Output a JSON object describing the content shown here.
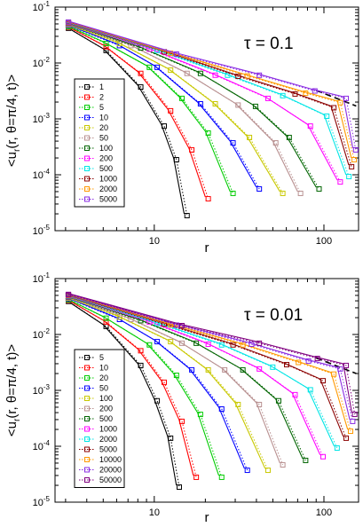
{
  "chart_data": [
    {
      "type": "line",
      "annotation": "τ = 0.1",
      "xlabel": "r",
      "ylabel": "<u_r(r, θ=π/4, t)>",
      "xscale": "log",
      "yscale": "log",
      "xlim": [
        2.6,
        160
      ],
      "ylim": [
        1e-05,
        0.1
      ],
      "x_ticks": [
        "10",
        "100"
      ],
      "y_ticks": [
        "10-5",
        "10-4",
        "10-3",
        "10-2",
        "10-1"
      ],
      "legend_position": "left",
      "series": [
        {
          "name": "1",
          "color": "#000000",
          "values": [
            [
              3,
              0.045
            ],
            [
              5,
              0.018
            ],
            [
              8,
              0.004
            ],
            [
              11,
              0.0008
            ],
            [
              13,
              0.0002
            ],
            [
              15,
              2e-05
            ]
          ]
        },
        {
          "name": "2",
          "color": "#ff0000",
          "values": [
            [
              3,
              0.047
            ],
            [
              5,
              0.021
            ],
            [
              8,
              0.007
            ],
            [
              12,
              0.0015
            ],
            [
              16,
              0.0003
            ],
            [
              20,
              4e-05
            ]
          ]
        },
        {
          "name": "5",
          "color": "#00cc00",
          "values": [
            [
              3,
              0.048
            ],
            [
              5,
              0.024
            ],
            [
              9,
              0.009
            ],
            [
              14,
              0.0025
            ],
            [
              20,
              0.0006
            ],
            [
              28,
              5e-05
            ]
          ]
        },
        {
          "name": "10",
          "color": "#0000ff",
          "values": [
            [
              3,
              0.05
            ],
            [
              6,
              0.022
            ],
            [
              10,
              0.009
            ],
            [
              18,
              0.002
            ],
            [
              28,
              0.0004
            ],
            [
              40,
              6e-05
            ]
          ]
        },
        {
          "name": "20",
          "color": "#c8c800",
          "values": [
            [
              3,
              0.051
            ],
            [
              6,
              0.024
            ],
            [
              12,
              0.008
            ],
            [
              22,
              0.002
            ],
            [
              35,
              0.0005
            ],
            [
              55,
              5e-05
            ]
          ]
        },
        {
          "name": "50",
          "color": "#b89090",
          "values": [
            [
              3,
              0.052
            ],
            [
              7,
              0.022
            ],
            [
              15,
              0.007
            ],
            [
              30,
              0.0019
            ],
            [
              50,
              0.0004
            ],
            [
              70,
              5e-05
            ]
          ]
        },
        {
          "name": "100",
          "color": "#006400",
          "values": [
            [
              3,
              0.053
            ],
            [
              8,
              0.02
            ],
            [
              18,
              0.007
            ],
            [
              38,
              0.0018
            ],
            [
              60,
              0.0005
            ],
            [
              90,
              6e-05
            ]
          ]
        },
        {
          "name": "200",
          "color": "#ff00ff",
          "values": [
            [
              3,
              0.054
            ],
            [
              9,
              0.019
            ],
            [
              22,
              0.0065
            ],
            [
              45,
              0.0025
            ],
            [
              80,
              0.0008
            ],
            [
              120,
              8e-05
            ]
          ]
        },
        {
          "name": "500",
          "color": "#00e5e5",
          "values": [
            [
              3,
              0.055
            ],
            [
              10,
              0.018
            ],
            [
              26,
              0.0065
            ],
            [
              55,
              0.0028
            ],
            [
              100,
              0.0012
            ],
            [
              135,
              0.0001
            ]
          ]
        },
        {
          "name": "1000",
          "color": "#8b0000",
          "values": [
            [
              3,
              0.056
            ],
            [
              11,
              0.017
            ],
            [
              30,
              0.0062
            ],
            [
              65,
              0.003
            ],
            [
              110,
              0.0017
            ],
            [
              140,
              0.00015
            ]
          ]
        },
        {
          "name": "2000",
          "color": "#ff9900",
          "values": [
            [
              3,
              0.057
            ],
            [
              12,
              0.016
            ],
            [
              34,
              0.0063
            ],
            [
              75,
              0.0031
            ],
            [
              120,
              0.0021
            ],
            [
              145,
              0.0002
            ]
          ]
        },
        {
          "name": "5000",
          "color": "#8a2be2",
          "values": [
            [
              3,
              0.058
            ],
            [
              13,
              0.0155
            ],
            [
              40,
              0.0065
            ],
            [
              85,
              0.0034
            ],
            [
              130,
              0.0025
            ],
            [
              148,
              0.0003
            ]
          ]
        }
      ]
    },
    {
      "type": "line",
      "annotation": "τ = 0.01",
      "xlabel": "r",
      "ylabel": "<u_r(r, θ=π/4, t)>",
      "xscale": "log",
      "yscale": "log",
      "xlim": [
        2.6,
        160
      ],
      "ylim": [
        1e-05,
        0.1
      ],
      "x_ticks": [
        "10",
        "100"
      ],
      "y_ticks": [
        "10-5",
        "10-4",
        "10-3",
        "10-2",
        "10-1"
      ],
      "legend_position": "left",
      "series": [
        {
          "name": "5",
          "color": "#000000",
          "values": [
            [
              3,
              0.042
            ],
            [
              5,
              0.015
            ],
            [
              8,
              0.003
            ],
            [
              10,
              0.0007
            ],
            [
              12,
              0.00015
            ],
            [
              13.5,
              2e-05
            ]
          ]
        },
        {
          "name": "10",
          "color": "#ff0000",
          "values": [
            [
              3,
              0.044
            ],
            [
              5,
              0.018
            ],
            [
              8,
              0.0055
            ],
            [
              11,
              0.0015
            ],
            [
              14,
              0.0003
            ],
            [
              17,
              3e-05
            ]
          ]
        },
        {
          "name": "20",
          "color": "#00cc00",
          "values": [
            [
              3,
              0.045
            ],
            [
              5,
              0.021
            ],
            [
              9,
              0.007
            ],
            [
              13,
              0.002
            ],
            [
              18,
              0.0004
            ],
            [
              24,
              3e-05
            ]
          ]
        },
        {
          "name": "50",
          "color": "#0000ff",
          "values": [
            [
              3,
              0.047
            ],
            [
              6,
              0.02
            ],
            [
              10,
              0.008
            ],
            [
              16,
              0.0025
            ],
            [
              24,
              0.0005
            ],
            [
              34,
              4e-05
            ]
          ]
        },
        {
          "name": "100",
          "color": "#c8c800",
          "values": [
            [
              3,
              0.048
            ],
            [
              6,
              0.022
            ],
            [
              12,
              0.008
            ],
            [
              20,
              0.0025
            ],
            [
              30,
              0.0006
            ],
            [
              45,
              4e-05
            ]
          ]
        },
        {
          "name": "200",
          "color": "#b89090",
          "values": [
            [
              3,
              0.049
            ],
            [
              7,
              0.02
            ],
            [
              14,
              0.0075
            ],
            [
              25,
              0.0025
            ],
            [
              40,
              0.0006
            ],
            [
              55,
              5e-05
            ]
          ]
        },
        {
          "name": "500",
          "color": "#006400",
          "values": [
            [
              3,
              0.05
            ],
            [
              8,
              0.019
            ],
            [
              17,
              0.0075
            ],
            [
              32,
              0.0025
            ],
            [
              52,
              0.0007
            ],
            [
              75,
              6e-05
            ]
          ]
        },
        {
          "name": "1000",
          "color": "#ff00ff",
          "values": [
            [
              3,
              0.051
            ],
            [
              9,
              0.018
            ],
            [
              20,
              0.0072
            ],
            [
              40,
              0.0026
            ],
            [
              65,
              0.0009
            ],
            [
              95,
              7e-05
            ]
          ]
        },
        {
          "name": "2000",
          "color": "#00e5e5",
          "values": [
            [
              3,
              0.052
            ],
            [
              10,
              0.017
            ],
            [
              24,
              0.007
            ],
            [
              48,
              0.0028
            ],
            [
              80,
              0.0011
            ],
            [
              115,
              0.0001
            ]
          ]
        },
        {
          "name": "5000",
          "color": "#8b0000",
          "values": [
            [
              3,
              0.053
            ],
            [
              11,
              0.0165
            ],
            [
              28,
              0.007
            ],
            [
              58,
              0.0031
            ],
            [
              95,
              0.0016
            ],
            [
              130,
              0.00015
            ]
          ]
        },
        {
          "name": "10000",
          "color": "#ff9900",
          "values": [
            [
              3,
              0.054
            ],
            [
              12,
              0.016
            ],
            [
              32,
              0.007
            ],
            [
              68,
              0.0034
            ],
            [
              110,
              0.0021
            ],
            [
              138,
              0.0002
            ]
          ]
        },
        {
          "name": "20000",
          "color": "#8a2be2",
          "values": [
            [
              3,
              0.055
            ],
            [
              13,
              0.0158
            ],
            [
              36,
              0.0072
            ],
            [
              78,
              0.0036
            ],
            [
              120,
              0.0026
            ],
            [
              142,
              0.0003
            ]
          ]
        },
        {
          "name": "50000",
          "color": "#800080",
          "values": [
            [
              3,
              0.056
            ],
            [
              14,
              0.0155
            ],
            [
              40,
              0.0075
            ],
            [
              88,
              0.004
            ],
            [
              130,
              0.003
            ],
            [
              146,
              0.0004
            ]
          ]
        }
      ]
    }
  ]
}
